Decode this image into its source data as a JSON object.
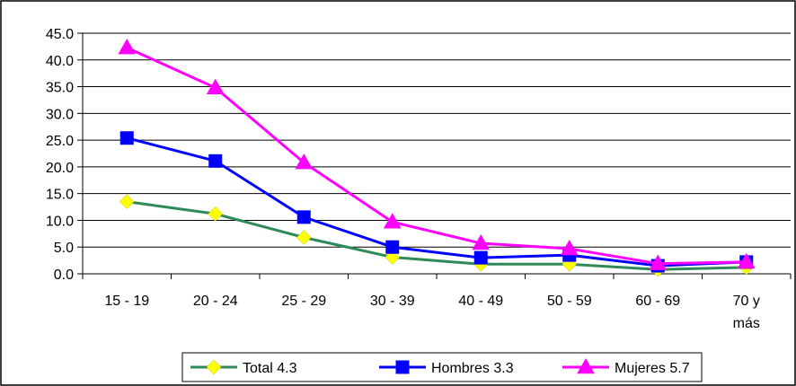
{
  "chart_data": {
    "type": "line",
    "title": "",
    "xlabel": "",
    "ylabel": "",
    "categories": [
      "15 - 19",
      "20 - 24",
      "25 - 29",
      "30 - 39",
      "40 - 49",
      "50 - 59",
      "60 - 69",
      "70 y más"
    ],
    "ylim": [
      0,
      45
    ],
    "yticks": [
      "0.0",
      "5.0",
      "10.0",
      "15.0",
      "20.0",
      "25.0",
      "30.0",
      "35.0",
      "40.0",
      "45.0"
    ],
    "grid": "horizontal",
    "legend_position": "bottom",
    "series": [
      {
        "name": "Total 4.3",
        "line_color": "#2e8b57",
        "marker": "diamond",
        "marker_color": "#ffff00",
        "values": [
          13.5,
          11.2,
          6.8,
          3.1,
          1.8,
          1.8,
          0.8,
          1.2
        ]
      },
      {
        "name": "Hombres 3.3",
        "line_color": "#0000ff",
        "marker": "square",
        "marker_color": "#0000ff",
        "values": [
          25.4,
          21.1,
          10.6,
          5.0,
          3.0,
          3.5,
          1.5,
          2.2
        ]
      },
      {
        "name": "Mujeres 5.7",
        "line_color": "#ff00ff",
        "marker": "triangle",
        "marker_color": "#ff00ff",
        "values": [
          42.3,
          34.8,
          20.8,
          9.7,
          5.7,
          4.7,
          1.9,
          2.2
        ]
      }
    ]
  }
}
